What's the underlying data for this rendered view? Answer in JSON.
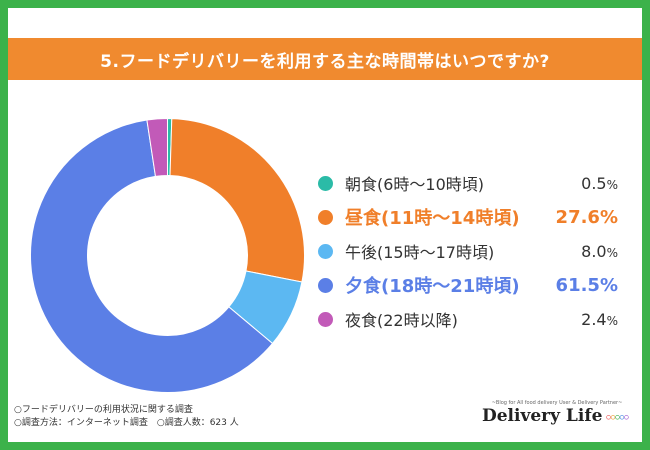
{
  "title": "5.フードデリバリーを利用する主な時間帯はいつですか?",
  "chart_data": {
    "type": "pie",
    "categories": [
      "朝食(6時～10時頃)",
      "昼食(11時～14時頃)",
      "午後(15時～17時頃)",
      "夕食(18時～21時頃)",
      "夜食(22時以降)"
    ],
    "values": [
      0.5,
      27.6,
      8.0,
      61.5,
      2.4
    ],
    "value_labels": [
      "0.5%",
      "27.6%",
      "8.0%",
      "61.5%",
      "2.4%"
    ],
    "colors": [
      "#2bbba7",
      "#f07f2a",
      "#5cb8f2",
      "#5b7fe6",
      "#c25ab8"
    ],
    "highlight_colors": [
      null,
      "#f07f2a",
      null,
      "#5b7fe6",
      null
    ],
    "emphasized": [
      false,
      true,
      false,
      true,
      false
    ],
    "donut": true
  },
  "footnotes": [
    "○フードデリバリーの利用状況に関する調査",
    "○調査方法：インターネット調査　○調査人数：623 人"
  ],
  "logo": {
    "tagline": "~Blog for All food delivery User & Delivery Partner~",
    "text": "Delivery Life"
  }
}
